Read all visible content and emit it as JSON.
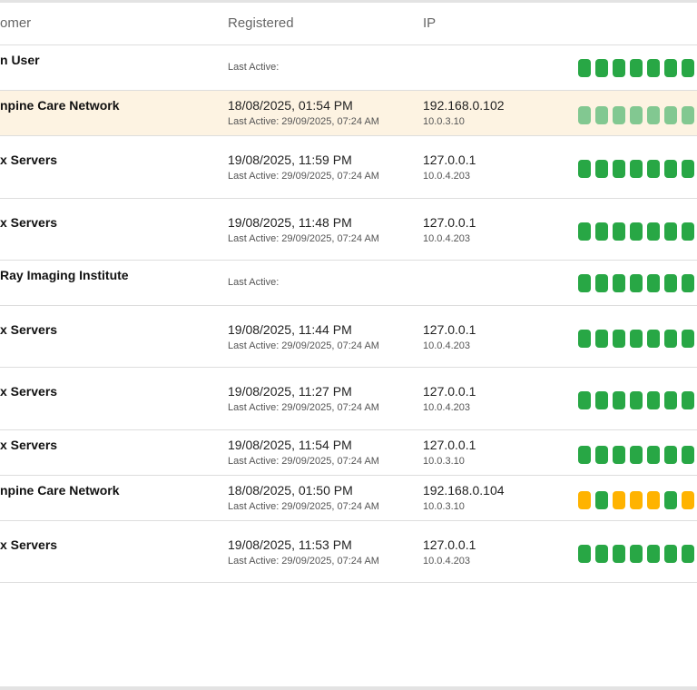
{
  "header": {
    "customer": "omer",
    "registered": "Registered",
    "ip": "IP"
  },
  "colors": {
    "green": "#28a745",
    "light_green": "#82c891",
    "amber": "#ffb300",
    "highlight": "#fdf3e2"
  },
  "rows": [
    {
      "name": "n User",
      "registered": "",
      "last_active": "Last Active:",
      "ip": "",
      "ip2": "",
      "bars": [
        "green",
        "green",
        "green",
        "green",
        "green",
        "green",
        "green"
      ]
    },
    {
      "name": "npine Care Network",
      "registered": "18/08/2025, 01:54 PM",
      "last_active": "Last Active: 29/09/2025, 07:24 AM",
      "ip": "192.168.0.102",
      "ip2": "10.0.3.10",
      "highlighted": true,
      "bars": [
        "light_green",
        "light_green",
        "light_green",
        "light_green",
        "light_green",
        "light_green",
        "light_green"
      ]
    },
    {
      "name": "x Servers",
      "registered": "19/08/2025, 11:59 PM",
      "last_active": "Last Active: 29/09/2025, 07:24 AM",
      "ip": "127.0.0.1",
      "ip2": "10.0.4.203",
      "bars": [
        "green",
        "green",
        "green",
        "green",
        "green",
        "green",
        "green"
      ]
    },
    {
      "name": "x Servers",
      "registered": "19/08/2025, 11:48 PM",
      "last_active": "Last Active: 29/09/2025, 07:24 AM",
      "ip": "127.0.0.1",
      "ip2": "10.0.4.203",
      "bars": [
        "green",
        "green",
        "green",
        "green",
        "green",
        "green",
        "green"
      ]
    },
    {
      "name": "Ray Imaging Institute",
      "registered": "",
      "last_active": "Last Active:",
      "ip": "",
      "ip2": "",
      "bars": [
        "green",
        "green",
        "green",
        "green",
        "green",
        "green",
        "green"
      ]
    },
    {
      "name": "x Servers",
      "registered": "19/08/2025, 11:44 PM",
      "last_active": "Last Active: 29/09/2025, 07:24 AM",
      "ip": "127.0.0.1",
      "ip2": "10.0.4.203",
      "bars": [
        "green",
        "green",
        "green",
        "green",
        "green",
        "green",
        "green"
      ]
    },
    {
      "name": "x Servers",
      "registered": "19/08/2025, 11:27 PM",
      "last_active": "Last Active: 29/09/2025, 07:24 AM",
      "ip": "127.0.0.1",
      "ip2": "10.0.4.203",
      "bars": [
        "green",
        "green",
        "green",
        "green",
        "green",
        "green",
        "green"
      ]
    },
    {
      "name": "x Servers",
      "registered": "19/08/2025, 11:54 PM",
      "last_active": "Last Active: 29/09/2025, 07:24 AM",
      "ip": "127.0.0.1",
      "ip2": "10.0.3.10",
      "bars": [
        "green",
        "green",
        "green",
        "green",
        "green",
        "green",
        "green"
      ]
    },
    {
      "name": "npine Care Network",
      "registered": "18/08/2025, 01:50 PM",
      "last_active": "Last Active: 29/09/2025, 07:24 AM",
      "ip": "192.168.0.104",
      "ip2": "10.0.3.10",
      "bars": [
        "amber",
        "green",
        "amber",
        "amber",
        "amber",
        "green",
        "amber"
      ]
    },
    {
      "name": "x Servers",
      "registered": "19/08/2025, 11:53 PM",
      "last_active": "Last Active: 29/09/2025, 07:24 AM",
      "ip": "127.0.0.1",
      "ip2": "10.0.4.203",
      "bars": [
        "green",
        "green",
        "green",
        "green",
        "green",
        "green",
        "green"
      ]
    }
  ]
}
